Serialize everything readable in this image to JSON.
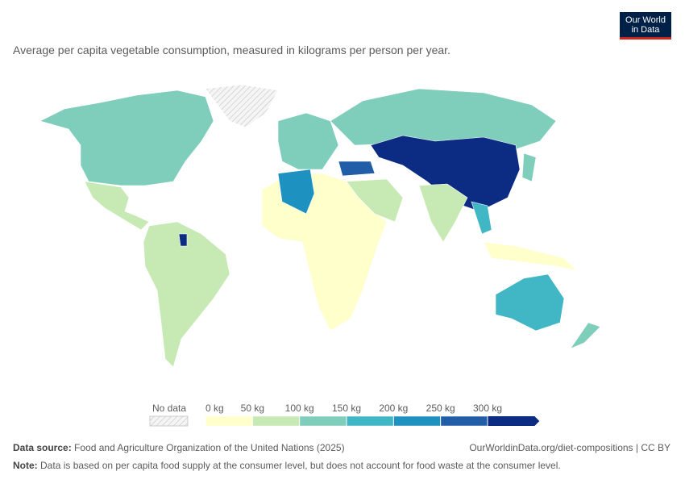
{
  "header": {
    "logo_line1": "Our World",
    "logo_line2": "in Data",
    "subtitle": "Average per capita vegetable consumption, measured in kilograms per person per year."
  },
  "legend": {
    "no_data": "No data",
    "ticks": [
      {
        "value": 0,
        "label": "0 kg"
      },
      {
        "value": 50,
        "label": "50 kg"
      },
      {
        "value": 100,
        "label": "100 kg"
      },
      {
        "value": 150,
        "label": "150 kg"
      },
      {
        "value": 200,
        "label": "200 kg"
      },
      {
        "value": 250,
        "label": "250 kg"
      },
      {
        "value": 300,
        "label": "300 kg"
      }
    ],
    "colors": [
      "#ffffcc",
      "#c7e9b4",
      "#7fcdbb",
      "#41b6c4",
      "#1d91c0",
      "#225ea8",
      "#0c2c84"
    ]
  },
  "footer": {
    "source_label": "Data source:",
    "source": "Food and Agriculture Organization of the United Nations (2025)",
    "url": "OurWorldinData.org/diet-compositions | CC BY",
    "note_label": "Note:",
    "note": "Data is based on per capita food supply at the consumer level, but does not account for food waste at the consumer level."
  }
}
